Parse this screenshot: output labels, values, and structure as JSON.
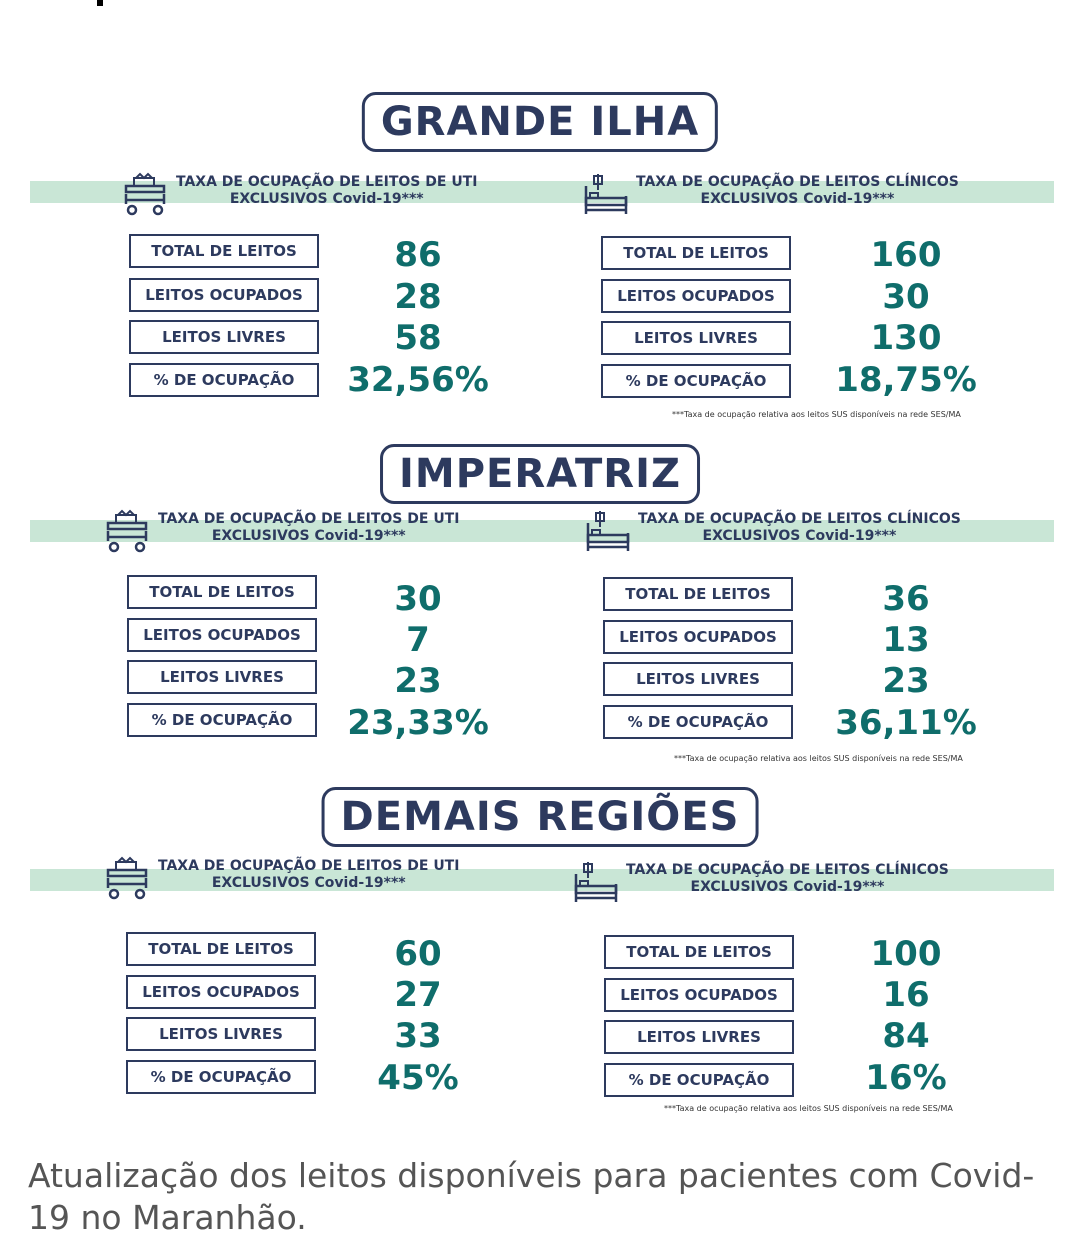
{
  "regions": [
    {
      "title": "GRANDE ILHA",
      "uti": {
        "heading_line1": "TAXA DE OCUPAÇÃO DE LEITOS DE UTI",
        "heading_line2": "EXCLUSIVOS Covid-19***",
        "icon": "icu-bed-icon",
        "rows": [
          {
            "label": "TOTAL DE LEITOS",
            "value": "86"
          },
          {
            "label": "LEITOS OCUPADOS",
            "value": "28"
          },
          {
            "label": "LEITOS LIVRES",
            "value": "58"
          },
          {
            "label": "% DE OCUPAÇÃO",
            "value": "32,56%"
          }
        ]
      },
      "clinicos": {
        "heading_line1": "TAXA DE OCUPAÇÃO DE LEITOS CLÍNICOS",
        "heading_line2": "EXCLUSIVOS Covid-19***",
        "icon": "hospital-bed-icon",
        "rows": [
          {
            "label": "TOTAL DE LEITOS",
            "value": "160"
          },
          {
            "label": "LEITOS OCUPADOS",
            "value": "30"
          },
          {
            "label": "LEITOS LIVRES",
            "value": "130"
          },
          {
            "label": "% DE OCUPAÇÃO",
            "value": "18,75%"
          }
        ]
      },
      "note": "***Taxa de ocupação relativa aos leitos SUS disponíveis na rede SES/MA"
    },
    {
      "title": "IMPERATRIZ",
      "uti": {
        "heading_line1": "TAXA DE OCUPAÇÃO DE LEITOS DE UTI",
        "heading_line2": "EXCLUSIVOS Covid-19***",
        "icon": "icu-bed-icon",
        "rows": [
          {
            "label": "TOTAL DE LEITOS",
            "value": "30"
          },
          {
            "label": "LEITOS OCUPADOS",
            "value": "7"
          },
          {
            "label": "LEITOS LIVRES",
            "value": "23"
          },
          {
            "label": "% DE OCUPAÇÃO",
            "value": "23,33%"
          }
        ]
      },
      "clinicos": {
        "heading_line1": "TAXA DE OCUPAÇÃO DE LEITOS CLÍNICOS",
        "heading_line2": "EXCLUSIVOS Covid-19***",
        "icon": "hospital-bed-icon",
        "rows": [
          {
            "label": "TOTAL DE LEITOS",
            "value": "36"
          },
          {
            "label": "LEITOS OCUPADOS",
            "value": "13"
          },
          {
            "label": "LEITOS LIVRES",
            "value": "23"
          },
          {
            "label": "% DE OCUPAÇÃO",
            "value": "36,11%"
          }
        ]
      },
      "note": "***Taxa de ocupação relativa aos leitos SUS disponíveis na rede SES/MA"
    },
    {
      "title": "DEMAIS REGIÕES",
      "uti": {
        "heading_line1": "TAXA DE OCUPAÇÃO DE LEITOS DE UTI",
        "heading_line2": "EXCLUSIVOS Covid-19***",
        "icon": "icu-bed-icon",
        "rows": [
          {
            "label": "TOTAL DE LEITOS",
            "value": "60"
          },
          {
            "label": "LEITOS OCUPADOS",
            "value": "27"
          },
          {
            "label": "LEITOS LIVRES",
            "value": "33"
          },
          {
            "label": "% DE OCUPAÇÃO",
            "value": "45%"
          }
        ]
      },
      "clinicos": {
        "heading_line1": "TAXA DE OCUPAÇÃO DE LEITOS CLÍNICOS",
        "heading_line2": "EXCLUSIVOS Covid-19***",
        "icon": "hospital-bed-icon",
        "rows": [
          {
            "label": "TOTAL DE LEITOS",
            "value": "100"
          },
          {
            "label": "LEITOS OCUPADOS",
            "value": "16"
          },
          {
            "label": "LEITOS LIVRES",
            "value": "84"
          },
          {
            "label": "% DE OCUPAÇÃO",
            "value": "16%"
          }
        ]
      },
      "note": "***Taxa de ocupação relativa aos leitos SUS disponíveis na rede SES/MA"
    }
  ],
  "caption": "Atualização dos leitos disponíveis para pacientes com Covid-19 no Maranhão.",
  "colors": {
    "navy": "#2d3a5e",
    "teal": "#0f6d6b",
    "band": "#c9e6d6"
  }
}
